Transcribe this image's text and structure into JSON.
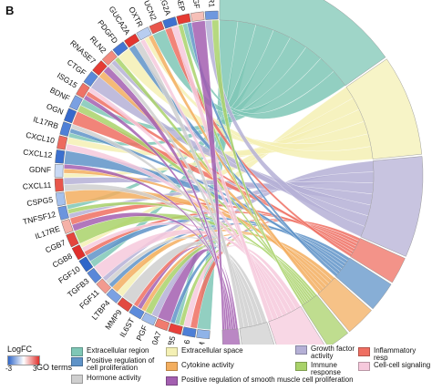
{
  "figure": {
    "panel_letter": "B"
  },
  "genes": [
    {
      "name": "A2M",
      "logfc_color": "#8fb3e8"
    },
    {
      "name": "IL16",
      "logfc_color": "#4d7fd6"
    },
    {
      "name": "CGB5",
      "logfc_color": "#e8413b"
    },
    {
      "name": "S100A7",
      "logfc_color": "#f07b6e"
    },
    {
      "name": "PGF",
      "logfc_color": "#9fbbe9"
    },
    {
      "name": "IL6ST",
      "logfc_color": "#5c8bdb"
    },
    {
      "name": "MMP9",
      "logfc_color": "#e24a40"
    },
    {
      "name": "LTBP4",
      "logfc_color": "#7ba1e3"
    },
    {
      "name": "FGF11",
      "logfc_color": "#f29a8f"
    },
    {
      "name": "TGFB3",
      "logfc_color": "#5a87d9"
    },
    {
      "name": "FGF10",
      "logfc_color": "#2f66c9"
    },
    {
      "name": "CGB8",
      "logfc_color": "#e0302c"
    },
    {
      "name": "CGB7",
      "logfc_color": "#e4463d"
    },
    {
      "name": "IL17RE",
      "logfc_color": "#f5b1a7"
    },
    {
      "name": "TNFSF12",
      "logfc_color": "#6b95de"
    },
    {
      "name": "CSPG5",
      "logfc_color": "#a6c1ec"
    },
    {
      "name": "CXCL11",
      "logfc_color": "#e8564b"
    },
    {
      "name": "GDNF",
      "logfc_color": "#c9d9f4"
    },
    {
      "name": "CXCL12",
      "logfc_color": "#3b70cf"
    },
    {
      "name": "CXCL10",
      "logfc_color": "#ed6a5e"
    },
    {
      "name": "IL17RB",
      "logfc_color": "#4f80d7"
    },
    {
      "name": "OGN",
      "logfc_color": "#3669cc"
    },
    {
      "name": "BDNF",
      "logfc_color": "#7aa0e2"
    },
    {
      "name": "ISG15",
      "logfc_color": "#ee7266"
    },
    {
      "name": "CTGF",
      "logfc_color": "#5b8ada"
    },
    {
      "name": "RNASE7",
      "logfc_color": "#e53c34"
    },
    {
      "name": "RLN2",
      "logfc_color": "#f28a7e"
    },
    {
      "name": "PDGFD",
      "logfc_color": "#4475d3"
    },
    {
      "name": "GUCA2A",
      "logfc_color": "#e3342f"
    },
    {
      "name": "OXTR",
      "logfc_color": "#b8cdf0"
    },
    {
      "name": "UCN2",
      "logfc_color": "#e9564c"
    },
    {
      "name": "PLA2G2A",
      "logfc_color": "#3e72d0"
    },
    {
      "name": "PAEP",
      "logfc_color": "#e53a33"
    },
    {
      "name": "NGF",
      "logfc_color": "#f6c0b8"
    },
    {
      "name": "FGFR1",
      "logfc_color": "#6f98df"
    }
  ],
  "terms": [
    {
      "name": "Extracellular region",
      "color": "#7fc7b6"
    },
    {
      "name": "Extracellular space",
      "color": "#f4f0b4"
    },
    {
      "name": "Growth factor activity",
      "color": "#b5b0d6"
    },
    {
      "name": "Inflammatory resp",
      "color": "#ef6f62"
    },
    {
      "name": "Positive regulation of cell proliferation",
      "color": "#5f93c8"
    },
    {
      "name": "Cytokine activity",
      "color": "#f3ae5f"
    },
    {
      "name": "Immune response",
      "color": "#a9d26a"
    },
    {
      "name": "Cell-cell signaling",
      "color": "#f6c9dc"
    },
    {
      "name": "Hormone activity",
      "color": "#cfcfcf"
    },
    {
      "name": "Positive regulation of smooth muscle cell proliferation",
      "color": "#a35fb0"
    }
  ],
  "legend": {
    "logfc_title": "LogFC",
    "logfc_min": "-3",
    "logfc_max": "3",
    "go_label": "GO terms",
    "items": [
      {
        "label": "Extracellular region",
        "color": "#7fc7b6"
      },
      {
        "label": "Extracellular space",
        "color": "#f4f0b4"
      },
      {
        "label": "Growth factor activity",
        "color": "#b5b0d6"
      },
      {
        "label": "Inflammatory resp",
        "color": "#ef6f62"
      },
      {
        "label": "Positive regulation of cell proliferation",
        "color": "#5f93c8"
      },
      {
        "label": "Cytokine activity",
        "color": "#f3ae5f"
      },
      {
        "label": "Immune response",
        "color": "#a9d26a"
      },
      {
        "label": "Cell-cell signaling",
        "color": "#f6c9dc"
      },
      {
        "label": "Hormone activity",
        "color": "#cfcfcf"
      },
      {
        "label": "Positive regulation of smooth muscle cell proliferation",
        "color": "#a35fb0"
      }
    ]
  }
}
